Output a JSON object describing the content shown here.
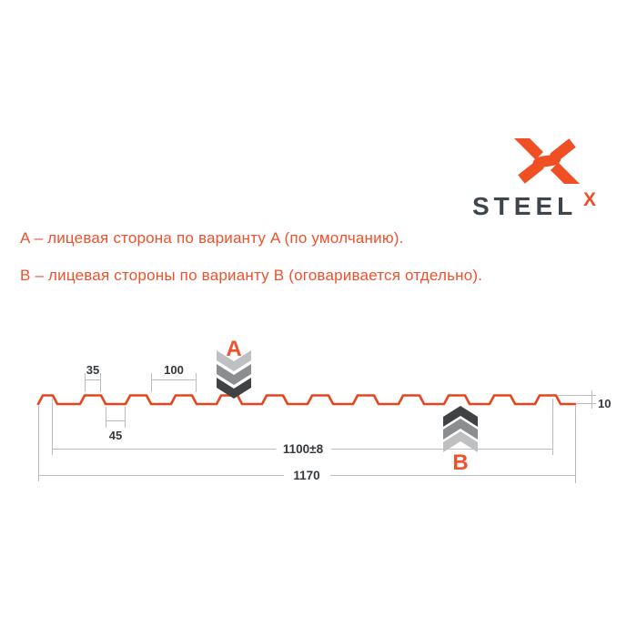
{
  "logo": {
    "brand": "STEEL",
    "brand_sup": "X",
    "accent_color": "#F04E23",
    "text_color": "#3F454C"
  },
  "legend": {
    "line_a": "A – лицевая сторона по варианту A (по умолчанию).",
    "line_b": "B – лицевая стороны по варианту B (оговаривается отдельно).",
    "color": "#F0512C"
  },
  "diagram": {
    "marker_a": "A",
    "marker_b": "B",
    "dimensions": {
      "rib_top_width": "35",
      "rib_pitch": "100",
      "valley_width": "45",
      "profile_height": "10",
      "working_width": "1100±8",
      "overall_width": "1170"
    },
    "profile": {
      "ribs": 11,
      "line_color": "#E8431F",
      "chevron_colors": {
        "light": "#BFC0C2",
        "mid": "#8B8D8F",
        "dark": "#404346"
      }
    }
  }
}
